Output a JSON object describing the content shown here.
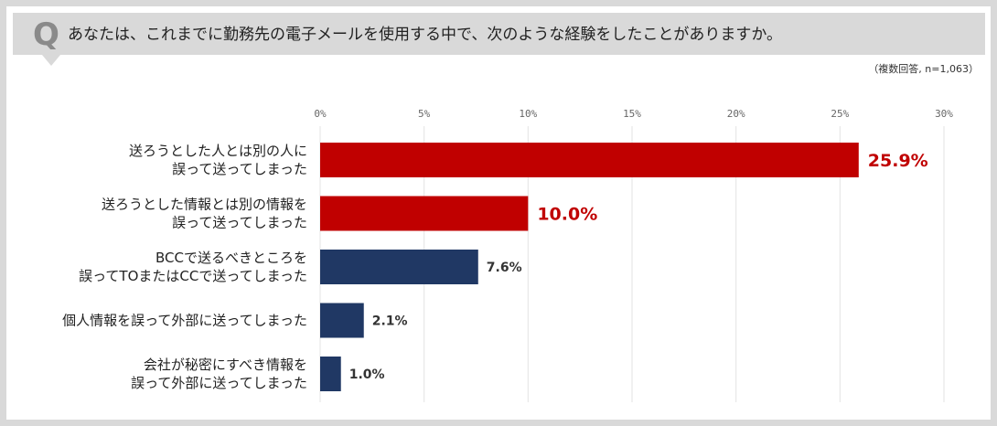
{
  "question": {
    "mark": "Q",
    "text": "あなたは、これまでに勤務先の電子メールを使用する中で、次のような経験をしたことがありますか。"
  },
  "note": "（複数回答, n=1,063）",
  "colors": {
    "highlight": "#c00000",
    "normal": "#203864",
    "header_bg": "#d9d9d9",
    "grid": "#e3e3e3"
  },
  "chart_data": {
    "type": "bar",
    "orientation": "horizontal",
    "xlim": [
      0,
      30
    ],
    "ticks": [
      0,
      5,
      10,
      15,
      20,
      25,
      30
    ],
    "tick_labels": [
      "0%",
      "5%",
      "10%",
      "15%",
      "20%",
      "25%",
      "30%"
    ],
    "categories": [
      [
        "送ろうとした人とは別の人に",
        "誤って送ってしまった"
      ],
      [
        "送ろうとした情報とは別の情報を",
        "誤って送ってしまった"
      ],
      [
        "BCCで送るべきところを",
        "誤ってTOまたはCCで送ってしまった"
      ],
      [
        "個人情報を誤って外部に送ってしまった"
      ],
      [
        "会社が秘密にすべき情報を",
        "誤って外部に送ってしまった"
      ]
    ],
    "values": [
      25.9,
      10.0,
      7.6,
      2.1,
      1.0
    ],
    "value_labels": [
      "25.9%",
      "10.0%",
      "7.6%",
      "2.1%",
      "1.0%"
    ],
    "highlighted": [
      true,
      true,
      false,
      false,
      false
    ],
    "grid": true
  }
}
